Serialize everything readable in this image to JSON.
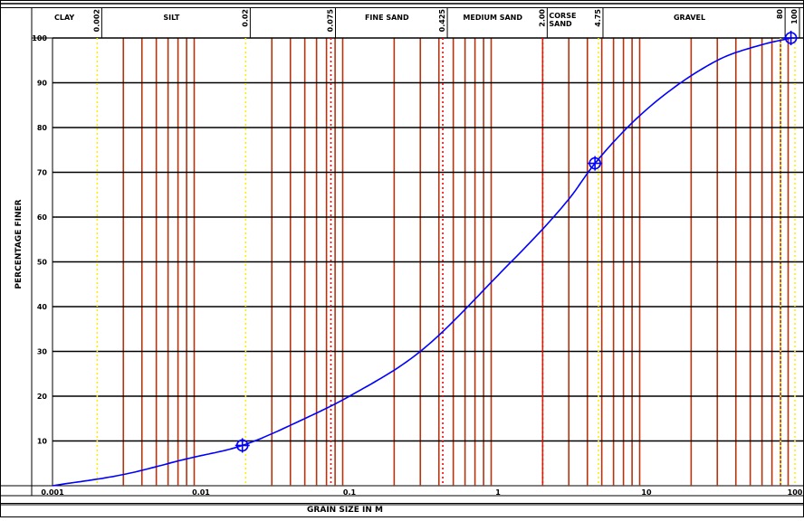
{
  "chart_data": {
    "type": "line",
    "title": "",
    "xlabel": "GRAIN SIZE IN M",
    "ylabel": "PERCENTAGE FINER",
    "x_scale": "log",
    "xlim": [
      0.001,
      100
    ],
    "ylim": [
      0,
      100
    ],
    "x_ticks": [
      {
        "value": 0.001,
        "label": "0.001"
      },
      {
        "value": 0.01,
        "label": "0.01"
      },
      {
        "value": 0.1,
        "label": "0.1"
      },
      {
        "value": 1,
        "label": "1"
      },
      {
        "value": 10,
        "label": "10"
      },
      {
        "value": 100,
        "label": "100"
      }
    ],
    "y_ticks": [
      {
        "value": 10,
        "label": "10"
      },
      {
        "value": 20,
        "label": "20"
      },
      {
        "value": 30,
        "label": "30"
      },
      {
        "value": 40,
        "label": "40"
      },
      {
        "value": 50,
        "label": "50"
      },
      {
        "value": 60,
        "label": "60"
      },
      {
        "value": 70,
        "label": "70"
      },
      {
        "value": 80,
        "label": "80"
      },
      {
        "value": 90,
        "label": "90"
      },
      {
        "value": 100,
        "label": "100"
      }
    ],
    "grid": true,
    "vertical_gridlines_x": [
      0.003,
      0.004,
      0.005,
      0.006,
      0.007,
      0.008,
      0.009,
      0.03,
      0.04,
      0.05,
      0.06,
      0.07,
      0.08,
      0.09,
      0.2,
      0.3,
      0.4,
      0.5,
      0.6,
      0.7,
      0.8,
      0.9,
      2,
      3,
      4,
      5,
      6,
      7,
      8,
      9,
      20,
      30,
      40,
      50,
      60,
      70,
      80,
      90
    ],
    "size_limits": [
      {
        "value": 0.002,
        "label": "0.002",
        "color": "#ffee00",
        "style": "dotted"
      },
      {
        "value": 0.02,
        "label": "0.02",
        "color": "#ffee00",
        "style": "dotted"
      },
      {
        "value": 0.075,
        "label": "0.075",
        "color": "#ff0000",
        "style": "dotted"
      },
      {
        "value": 0.425,
        "label": "0.425",
        "color": "#ff0000",
        "style": "dotted"
      },
      {
        "value": 2.0,
        "label": "2.00",
        "color": "#ff0000",
        "style": "dotted"
      },
      {
        "value": 4.75,
        "label": "4.75",
        "color": "#ffee00",
        "style": "dotted"
      },
      {
        "value": 80,
        "label": "80",
        "color": "#ffee00",
        "style": "dotted"
      },
      {
        "value": 100,
        "label": "100",
        "color": "#ffee00",
        "style": "dotted"
      }
    ],
    "zones": [
      {
        "name": "CLAY",
        "from": 0.001,
        "to": 0.002
      },
      {
        "name": "SILT",
        "from": 0.002,
        "to": 0.02
      },
      {
        "name": "",
        "from": 0.02,
        "to": 0.075
      },
      {
        "name": "FINE SAND",
        "from": 0.075,
        "to": 0.425
      },
      {
        "name": "MEDIUM SAND",
        "from": 0.425,
        "to": 2.0
      },
      {
        "name": "CORSE SAND",
        "from": 2.0,
        "to": 4.75
      },
      {
        "name": "GRAVEL",
        "from": 4.75,
        "to": 80
      },
      {
        "name": "",
        "from": 80,
        "to": 100
      }
    ],
    "series": [
      {
        "color": "#0000ff",
        "x": [
          0.001,
          0.003,
          0.008,
          0.019,
          0.05,
          0.1,
          0.3,
          1,
          3,
          4.5,
          10,
          30,
          60,
          94
        ],
        "y": [
          0,
          2.5,
          6,
          9,
          15,
          20,
          30,
          47,
          64,
          72,
          84,
          95,
          98.5,
          100
        ]
      }
    ],
    "markers": [
      {
        "x": 0.019,
        "y": 9
      },
      {
        "x": 4.5,
        "y": 72
      },
      {
        "x": 94,
        "y": 100
      }
    ],
    "colors": {
      "gridline": "#b5330d",
      "curve": "#0000ff",
      "frame": "#000000"
    }
  }
}
